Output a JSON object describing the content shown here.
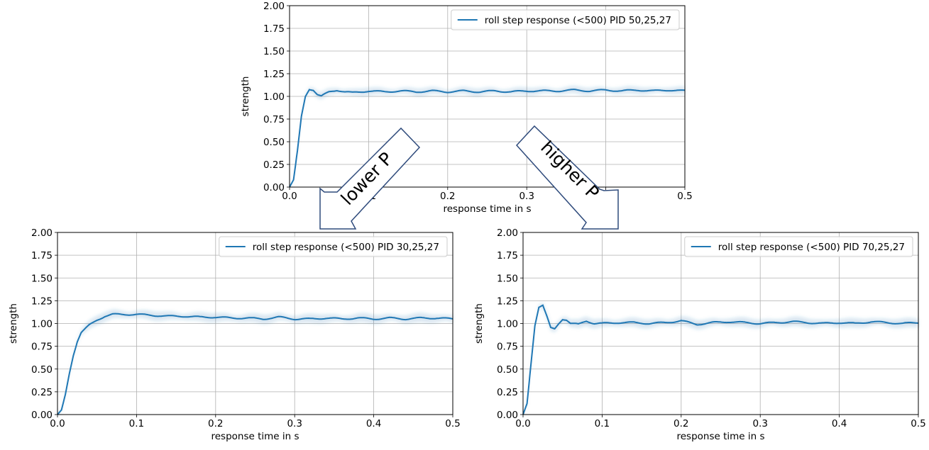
{
  "colors": {
    "line": "#1f77b4",
    "band": "#1f77b4",
    "grid": "#b0b0b0",
    "axis": "#000000",
    "arrow_fill": "#ffffff",
    "arrow_stroke": "#2f4b7c"
  },
  "arrows": {
    "lower": "lower P",
    "higher": "higher P"
  },
  "chart_data": [
    {
      "id": "top",
      "type": "line",
      "xlabel": "response time in s",
      "ylabel": "strength",
      "xlim": [
        0,
        0.5
      ],
      "ylim": [
        0,
        2
      ],
      "xticks": [
        "0.0",
        "0.1",
        "0.2",
        "0.3",
        "0.4",
        "0.5"
      ],
      "yticks": [
        "0.00",
        "0.25",
        "0.50",
        "0.75",
        "1.00",
        "1.25",
        "1.50",
        "1.75",
        "2.00"
      ],
      "grid": true,
      "legend_position": "top-right",
      "series": [
        {
          "name": "roll step response (<500)  PID 50,25,27",
          "x": [
            0,
            0.005,
            0.01,
            0.015,
            0.02,
            0.025,
            0.03,
            0.035,
            0.04,
            0.05,
            0.06,
            0.07,
            0.08,
            0.09,
            0.1,
            0.12,
            0.14,
            0.16,
            0.18,
            0.2,
            0.22,
            0.24,
            0.26,
            0.28,
            0.3,
            0.32,
            0.34,
            0.36,
            0.38,
            0.4,
            0.42,
            0.44,
            0.46,
            0.48,
            0.5
          ],
          "y": [
            0,
            0.08,
            0.4,
            0.78,
            1.0,
            1.08,
            1.07,
            1.02,
            1.0,
            1.05,
            1.07,
            1.05,
            1.04,
            1.05,
            1.06,
            1.05,
            1.06,
            1.05,
            1.06,
            1.05,
            1.06,
            1.05,
            1.06,
            1.05,
            1.06,
            1.06,
            1.06,
            1.07,
            1.06,
            1.07,
            1.06,
            1.07,
            1.06,
            1.07,
            1.06
          ],
          "spread": 0.04
        }
      ]
    },
    {
      "id": "left",
      "type": "line",
      "xlabel": "response time in s",
      "ylabel": "strength",
      "xlim": [
        0,
        0.5
      ],
      "ylim": [
        0,
        2
      ],
      "xticks": [
        "0.0",
        "0.1",
        "0.2",
        "0.3",
        "0.4",
        "0.5"
      ],
      "yticks": [
        "0.00",
        "0.25",
        "0.50",
        "0.75",
        "1.00",
        "1.25",
        "1.50",
        "1.75",
        "2.00"
      ],
      "grid": true,
      "legend_position": "top-right",
      "series": [
        {
          "name": "roll step response (<500)  PID 30,25,27",
          "x": [
            0,
            0.005,
            0.01,
            0.015,
            0.02,
            0.025,
            0.03,
            0.04,
            0.05,
            0.06,
            0.07,
            0.08,
            0.1,
            0.12,
            0.14,
            0.16,
            0.18,
            0.2,
            0.22,
            0.24,
            0.26,
            0.28,
            0.3,
            0.32,
            0.34,
            0.36,
            0.38,
            0.4,
            0.42,
            0.44,
            0.46,
            0.48,
            0.5
          ],
          "y": [
            0,
            0.05,
            0.22,
            0.45,
            0.65,
            0.8,
            0.9,
            0.98,
            1.04,
            1.08,
            1.1,
            1.1,
            1.1,
            1.09,
            1.08,
            1.08,
            1.07,
            1.07,
            1.06,
            1.06,
            1.05,
            1.07,
            1.05,
            1.05,
            1.06,
            1.05,
            1.06,
            1.05,
            1.06,
            1.05,
            1.06,
            1.06,
            1.05
          ],
          "spread": 0.05
        }
      ]
    },
    {
      "id": "right",
      "type": "line",
      "xlabel": "response time in s",
      "ylabel": "strength",
      "xlim": [
        0,
        0.5
      ],
      "ylim": [
        0,
        2
      ],
      "xticks": [
        "0.0",
        "0.1",
        "0.2",
        "0.3",
        "0.4",
        "0.5"
      ],
      "yticks": [
        "0.00",
        "0.25",
        "0.50",
        "0.75",
        "1.00",
        "1.25",
        "1.50",
        "1.75",
        "2.00"
      ],
      "grid": true,
      "legend_position": "top-right",
      "series": [
        {
          "name": "roll step response (<500)  PID 70,25,27",
          "x": [
            0,
            0.005,
            0.01,
            0.015,
            0.02,
            0.025,
            0.03,
            0.035,
            0.04,
            0.045,
            0.05,
            0.055,
            0.06,
            0.07,
            0.08,
            0.09,
            0.1,
            0.12,
            0.14,
            0.16,
            0.18,
            0.2,
            0.22,
            0.24,
            0.26,
            0.28,
            0.3,
            0.32,
            0.34,
            0.36,
            0.38,
            0.4,
            0.42,
            0.44,
            0.46,
            0.48,
            0.5
          ],
          "y": [
            0,
            0.12,
            0.55,
            0.98,
            1.18,
            1.2,
            1.08,
            0.95,
            0.94,
            1.0,
            1.05,
            1.04,
            1.0,
            0.99,
            1.03,
            1.0,
            1.0,
            1.01,
            1.01,
            1.0,
            1.01,
            1.03,
            0.99,
            1.01,
            1.02,
            1.01,
            1.0,
            1.01,
            1.02,
            1.01,
            1.0,
            1.01,
            1.0,
            1.02,
            1.01,
            1.0,
            1.01
          ],
          "spread": 0.05
        }
      ]
    }
  ]
}
